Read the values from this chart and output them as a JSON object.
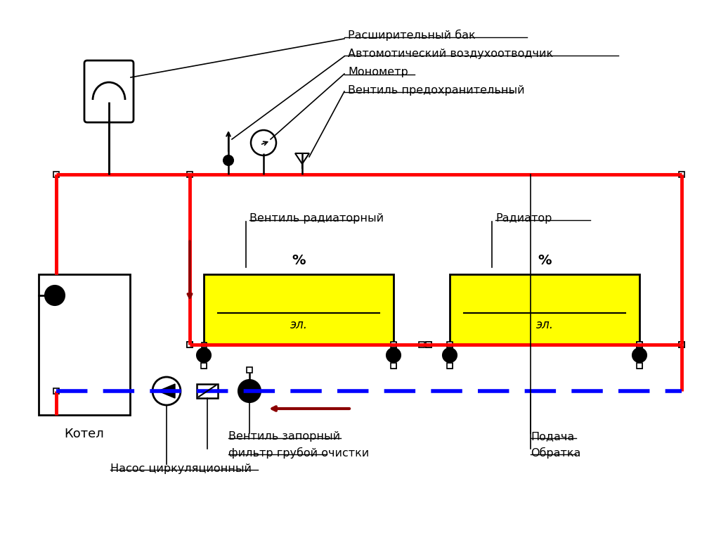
{
  "bg_color": "#ffffff",
  "red": "#ff0000",
  "dark_red": "#8b0000",
  "blue_dashed": "#0000ff",
  "black": "#000000",
  "yellow": "#ffff00",
  "title": "",
  "labels": {
    "expansion_tank": "Расширительный бак",
    "air_vent": "Автомотический воздухоотводчик",
    "manometer": "Монометр",
    "safety_valve": "Вентиль предохранительный",
    "radiator_valve": "Вентиль радиаторный",
    "radiator": "Радиатор",
    "stop_valve": "Вентиль запорный",
    "filter": "фильтр грубой очистки",
    "pump": "Насос циркуляционный",
    "boiler": "Котел",
    "supply": "Подача",
    "return": "Обратка",
    "el": "эл.",
    "percent": "%"
  }
}
